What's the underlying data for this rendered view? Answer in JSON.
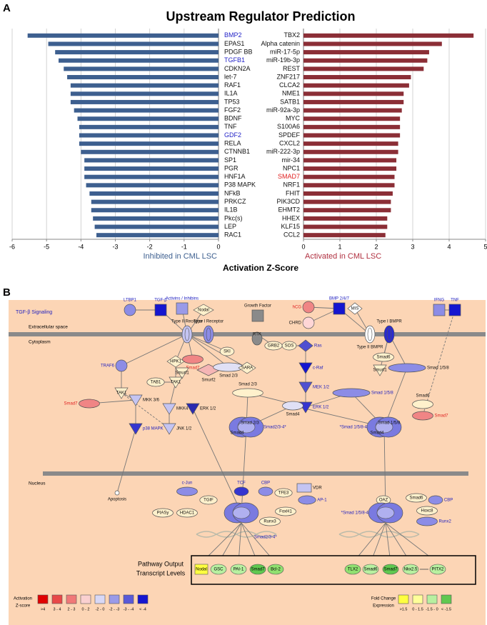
{
  "panel_a": {
    "label": "A",
    "shared_xlabel": "Activation Z-Score"
  },
  "chart_data": [
    {
      "type": "bar",
      "orientation": "horizontal",
      "title": "Upstream Regulator Prediction",
      "categories": [
        "BMP2",
        "EPAS1",
        "PDGF BB",
        "TGFB1",
        "CDKN2A",
        "let-7",
        "RAF1",
        "IL1A",
        "TP53",
        "FGF2",
        "BDNF",
        "TNF",
        "GDF2",
        "RELA",
        "CTNNB1",
        "SP1",
        "PGR",
        "HNF1A",
        "P38 MAPK",
        "NFkB",
        "PRKCZ",
        "IL1B",
        "Pkc(s)",
        "LEP",
        "RAC1"
      ],
      "values": [
        -5.55,
        -4.95,
        -4.75,
        -4.65,
        -4.5,
        -4.4,
        -4.3,
        -4.3,
        -4.3,
        -4.2,
        -4.1,
        -4.05,
        -4.05,
        -4.05,
        -4.0,
        -3.9,
        -3.9,
        -3.9,
        -3.85,
        -3.75,
        -3.7,
        -3.7,
        -3.65,
        -3.6,
        -3.55
      ],
      "category_colors": [
        "#2323c8",
        "#111",
        "#111",
        "#2323c8",
        "#111",
        "#111",
        "#111",
        "#111",
        "#111",
        "#111",
        "#111",
        "#111",
        "#2323c8",
        "#111",
        "#111",
        "#111",
        "#111",
        "#111",
        "#111",
        "#111",
        "#111",
        "#111",
        "#111",
        "#111",
        "#111"
      ],
      "color": "#3d5f8f",
      "xlim": [
        -6,
        0
      ],
      "xticks": [
        -6,
        -5,
        -4,
        -3,
        -2,
        -1,
        0
      ],
      "grid": true,
      "xlabel": "Inhibited in CML LSC",
      "xlabel_color": "#3d5f8f"
    },
    {
      "type": "bar",
      "orientation": "horizontal",
      "categories": [
        "TBX2",
        "Alpha catenin",
        "miR-17-5p",
        "miR-19b-3p",
        "REST",
        "ZNF217",
        "CLCA2",
        "NME1",
        "SATB1",
        "miR-92a-3p",
        "MYC",
        "S100A6",
        "SPDEF",
        "CXCL2",
        "miR-222-3p",
        "mir-34",
        "NPC1",
        "SMAD7",
        "NRF1",
        "FHIT",
        "PIK3CD",
        "EHMT2",
        "HHEX",
        "KLF15",
        "CCL2"
      ],
      "values": [
        4.67,
        3.8,
        3.45,
        3.4,
        3.3,
        2.95,
        2.9,
        2.75,
        2.75,
        2.7,
        2.65,
        2.65,
        2.65,
        2.6,
        2.6,
        2.55,
        2.55,
        2.5,
        2.5,
        2.45,
        2.4,
        2.4,
        2.3,
        2.3,
        2.25
      ],
      "category_colors": [
        "#111",
        "#111",
        "#111",
        "#111",
        "#111",
        "#111",
        "#111",
        "#111",
        "#111",
        "#111",
        "#111",
        "#111",
        "#111",
        "#111",
        "#111",
        "#111",
        "#111",
        "#e02020",
        "#111",
        "#111",
        "#111",
        "#111",
        "#111",
        "#111",
        "#111"
      ],
      "color": "#8b2e36",
      "xlim": [
        0,
        5
      ],
      "xticks": [
        0,
        1,
        2,
        3,
        4,
        5
      ],
      "grid": true,
      "xlabel": "Activated in CML LSC",
      "xlabel_color": "#b03040"
    }
  ],
  "panel_b": {
    "label": "B",
    "title": "TGF-β Signaling",
    "regions": [
      "Extracellular space",
      "Cytoplasm",
      "Nucleus"
    ],
    "nodes": [
      {
        "label": "LTBP1"
      },
      {
        "label": "TGF-β"
      },
      {
        "label": "Activins / Inhibins"
      },
      {
        "label": "Nodal"
      },
      {
        "label": "Growth Factor"
      },
      {
        "label": "hCG"
      },
      {
        "label": "CHRD"
      },
      {
        "label": "BMP 2/4/7"
      },
      {
        "label": "MIS"
      },
      {
        "label": "IFNG"
      },
      {
        "label": "TNF"
      },
      {
        "label": "Type II Receptor"
      },
      {
        "label": "Type I Receptor"
      },
      {
        "label": "RTK"
      },
      {
        "label": "Type II BMPR"
      },
      {
        "label": "Type I BMPR"
      },
      {
        "label": "GRB2"
      },
      {
        "label": "SOS"
      },
      {
        "label": "Ras"
      },
      {
        "label": "SKI"
      },
      {
        "label": "Smad7"
      },
      {
        "label": "HPK1"
      },
      {
        "label": "Smurf1"
      },
      {
        "label": "Smurf2"
      },
      {
        "label": "Smad 2/3"
      },
      {
        "label": "SARA"
      },
      {
        "label": "TRAF6"
      },
      {
        "label": "c-Raf"
      },
      {
        "label": "MEK 1/2"
      },
      {
        "label": "ERK 1/2"
      },
      {
        "label": "Smad6"
      },
      {
        "label": "Smurf1"
      },
      {
        "label": "Smad 1/5/8"
      },
      {
        "label": "TAK1"
      },
      {
        "label": "TAB1"
      },
      {
        "label": "TAK1"
      },
      {
        "label": "Smad7"
      },
      {
        "label": "MKK 3/6"
      },
      {
        "label": "MKK4"
      },
      {
        "label": "p38 MAPK"
      },
      {
        "label": "JNK 1/2"
      },
      {
        "label": "ERK 1/2"
      },
      {
        "label": "Smad 2/3"
      },
      {
        "label": "Smad 1/5/8"
      },
      {
        "label": "Smad4"
      },
      {
        "label": "Smad6"
      },
      {
        "label": "Smad7"
      },
      {
        "label": "Smad2/3-4*"
      },
      {
        "label": "Smad 2/3"
      },
      {
        "label": "Smad4"
      },
      {
        "label": "*Smad 1/5/8-4"
      },
      {
        "label": "Smad 1/5/8"
      },
      {
        "label": "Smad4"
      },
      {
        "label": "Apoptosis"
      },
      {
        "label": "c-Jun"
      },
      {
        "label": "TGIF"
      },
      {
        "label": "TCF"
      },
      {
        "label": "CBP"
      },
      {
        "label": "TFE3"
      },
      {
        "label": "VDR"
      },
      {
        "label": "AP-1"
      },
      {
        "label": "PIASy"
      },
      {
        "label": "HDAC1"
      },
      {
        "label": "FoxH1"
      },
      {
        "label": "Runx3"
      },
      {
        "label": "Smad2/3-4*"
      },
      {
        "label": "OAZ"
      },
      {
        "label": "Smad6"
      },
      {
        "label": "CBP"
      },
      {
        "label": "Hoxc8"
      },
      {
        "label": "Runx2"
      },
      {
        "label": "*Smad 1/5/8-4"
      }
    ],
    "output": {
      "title_lines": [
        "Pathway Output",
        "Transcript Levels"
      ],
      "genes": [
        "Nodal",
        "GSC",
        "PAI-1",
        "Smad7",
        "Bcl-2",
        "TLX2",
        "Smad6",
        "Smad7",
        "Nkx2.5",
        "PITX2"
      ]
    },
    "legend_activation": {
      "title_lines": [
        "Activation",
        "Z-score"
      ],
      "labels": [
        ">4",
        "3 - 4",
        "2 - 3",
        "0 - 2",
        "-2 - 0",
        "-2 - -3",
        "-3 - -4",
        "< -4"
      ]
    },
    "legend_fold": {
      "title_lines": [
        "Fold Change",
        "Expression"
      ],
      "labels": [
        ">1.5",
        "0 - 1.5",
        "-1.5 - 0",
        "< -1.5"
      ]
    }
  }
}
